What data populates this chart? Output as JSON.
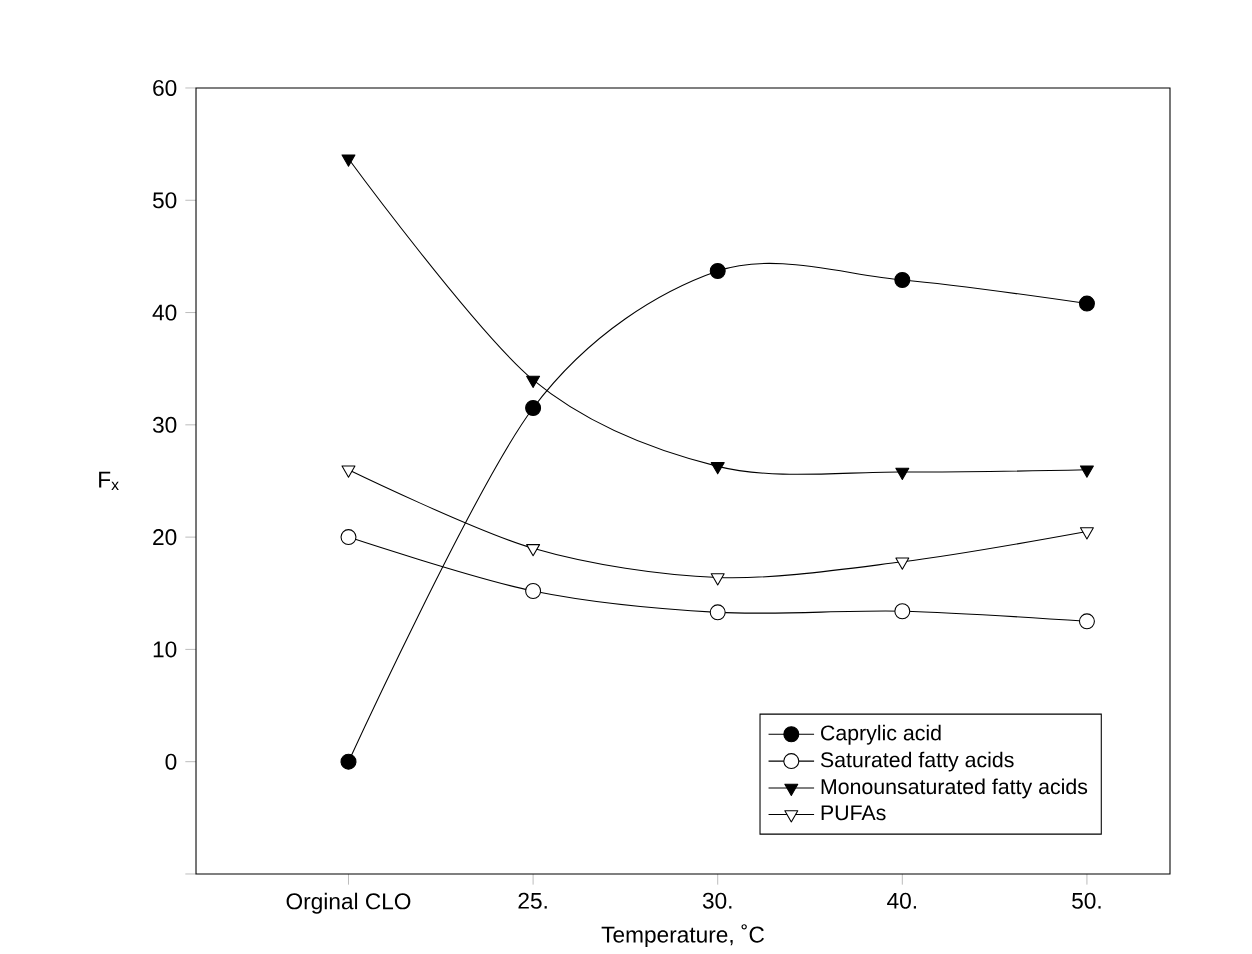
{
  "chart_data": {
    "type": "line",
    "xlabel": "Temperature, ˚C",
    "ylabel": "F$_{x}$",
    "categories": [
      "Orginal CLO",
      "25.",
      "30.",
      "40.",
      "50."
    ],
    "series": [
      {
        "name": "Caprylic acid",
        "color": "#000000",
        "marker": "circle",
        "values": [
          0,
          31.5,
          43.7,
          42.9,
          40.8
        ]
      },
      {
        "name": "Saturated fatty acids",
        "color": "#000000",
        "marker": "circle",
        "values": [
          20.0,
          15.2,
          13.3,
          13.4,
          12.5
        ]
      },
      {
        "name": "Monounsaturated fatty acids",
        "color": "#000000",
        "marker": "triangle down",
        "values": [
          53.7,
          34.0,
          26.3,
          25.8,
          26.0
        ]
      },
      {
        "name": "PUFAs",
        "color": "#000000",
        "marker": "triangle down",
        "values": [
          26.0,
          19.0,
          16.4,
          17.8,
          20.5
        ]
      }
    ],
    "ylim": [
      -10,
      60
    ],
    "yticks": [
      {
        "value": -10,
        "label": null
      },
      0,
      10,
      20,
      30,
      40,
      50,
      60
    ],
    "legend": "bottom right",
    "line_style": "solid",
    "grid": false
  }
}
